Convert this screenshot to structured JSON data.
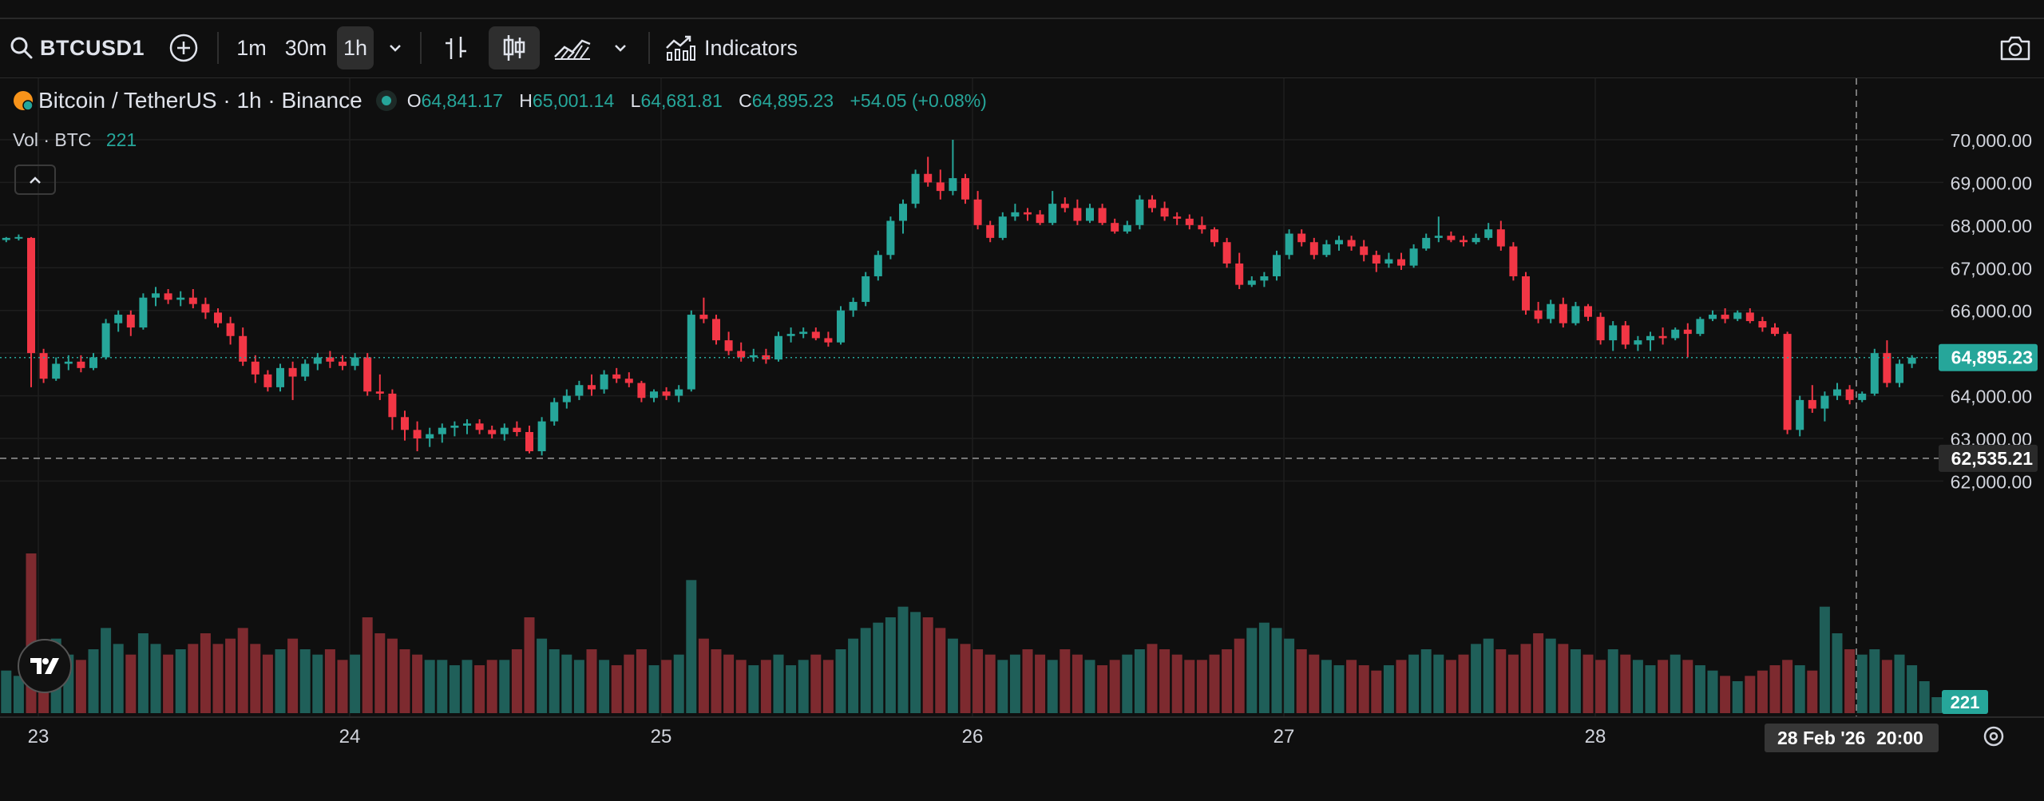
{
  "toolbar": {
    "symbol": "BTCUSD1",
    "intervals": [
      "1m",
      "30m",
      "1h"
    ],
    "active_interval": "1h",
    "indicators_label": "Indicators",
    "icons": [
      "search-icon",
      "add-symbol-icon",
      "chevron-down-icon",
      "bar-chart-icon",
      "candlestick-icon",
      "area-chart-icon",
      "indicators-icon",
      "camera-icon"
    ]
  },
  "legend": {
    "title": "Bitcoin / TetherUS · 1h · Binance",
    "open_key": "O",
    "open": "64,841.17",
    "high_key": "H",
    "high": "65,001.14",
    "low_key": "L",
    "low": "64,681.81",
    "close_key": "C",
    "close": "64,895.23",
    "change": "+54.05 (+0.08%)"
  },
  "volume_legend": {
    "label": "Vol · BTC",
    "value": "221"
  },
  "price_axis": {
    "current_price": "64,895.23",
    "crosshair_price": "62,535.21",
    "volume_badge": "221"
  },
  "time_axis": {
    "crosshair_date": "28 Feb '26",
    "crosshair_time": "20:00"
  },
  "colors": {
    "up": "#26a69a",
    "down": "#f23645",
    "background": "#0f0f0f",
    "grid": "#1e1e1e"
  },
  "chart_data": {
    "type": "candlestick",
    "title": "Bitcoin / TetherUS · 1h · Binance",
    "interval": "1h",
    "y_ticks": [
      70000,
      69000,
      68000,
      67000,
      66000,
      65000,
      64000,
      63000,
      62000
    ],
    "y_tick_labels": [
      "70,000.00",
      "69,000.00",
      "68,000.00",
      "67,000.00",
      "66,000.00",
      "65,000.00",
      "64,000.00",
      "63,000.00",
      "62,000.00"
    ],
    "x_ticks": [
      "23",
      "24",
      "25",
      "26",
      "27",
      "28"
    ],
    "last_close": 64895.23,
    "crosshair_value": 62535.21,
    "candles": [
      [
        67650,
        67720,
        67600,
        67700
      ],
      [
        67700,
        67780,
        67640,
        67720
      ],
      [
        67700,
        67720,
        64200,
        65000
      ],
      [
        65000,
        65100,
        64300,
        64400
      ],
      [
        64400,
        64900,
        64350,
        64750
      ],
      [
        64750,
        64950,
        64600,
        64800
      ],
      [
        64800,
        64950,
        64550,
        64650
      ],
      [
        64650,
        65000,
        64600,
        64900
      ],
      [
        64900,
        65800,
        64850,
        65700
      ],
      [
        65700,
        66000,
        65500,
        65900
      ],
      [
        65900,
        66000,
        65400,
        65600
      ],
      [
        65600,
        66400,
        65550,
        66300
      ],
      [
        66300,
        66550,
        66100,
        66400
      ],
      [
        66400,
        66500,
        66150,
        66250
      ],
      [
        66250,
        66450,
        66100,
        66300
      ],
      [
        66300,
        66500,
        66050,
        66150
      ],
      [
        66150,
        66300,
        65800,
        65950
      ],
      [
        65950,
        66050,
        65600,
        65700
      ],
      [
        65700,
        65850,
        65200,
        65400
      ],
      [
        65400,
        65600,
        64700,
        64800
      ],
      [
        64800,
        64950,
        64300,
        64500
      ],
      [
        64500,
        64600,
        64100,
        64200
      ],
      [
        64200,
        64750,
        64100,
        64650
      ],
      [
        64650,
        64800,
        63900,
        64450
      ],
      [
        64450,
        64850,
        64350,
        64750
      ],
      [
        64750,
        65000,
        64600,
        64900
      ],
      [
        64900,
        65050,
        64650,
        64800
      ],
      [
        64800,
        64950,
        64600,
        64700
      ],
      [
        64700,
        65000,
        64600,
        64900
      ],
      [
        64900,
        65000,
        64000,
        64100
      ],
      [
        64100,
        64500,
        63900,
        64050
      ],
      [
        64050,
        64150,
        63200,
        63500
      ],
      [
        63500,
        63650,
        62950,
        63200
      ],
      [
        63200,
        63400,
        62700,
        63000
      ],
      [
        63000,
        63250,
        62800,
        63100
      ],
      [
        63100,
        63350,
        62900,
        63250
      ],
      [
        63250,
        63400,
        63050,
        63300
      ],
      [
        63300,
        63450,
        63100,
        63350
      ],
      [
        63350,
        63450,
        63100,
        63200
      ],
      [
        63200,
        63300,
        63000,
        63100
      ],
      [
        63100,
        63350,
        62950,
        63250
      ],
      [
        63250,
        63400,
        63050,
        63150
      ],
      [
        63150,
        63300,
        62650,
        62700
      ],
      [
        62700,
        63500,
        62600,
        63400
      ],
      [
        63400,
        63950,
        63300,
        63850
      ],
      [
        63850,
        64150,
        63700,
        64000
      ],
      [
        64000,
        64350,
        63900,
        64250
      ],
      [
        64250,
        64500,
        64000,
        64150
      ],
      [
        64150,
        64600,
        64050,
        64500
      ],
      [
        64500,
        64650,
        64300,
        64400
      ],
      [
        64400,
        64550,
        64200,
        64300
      ],
      [
        64300,
        64350,
        63850,
        63950
      ],
      [
        63950,
        64150,
        63850,
        64100
      ],
      [
        64100,
        64200,
        63900,
        64000
      ],
      [
        64000,
        64250,
        63850,
        64150
      ],
      [
        64150,
        66000,
        64100,
        65900
      ],
      [
        65900,
        66300,
        65700,
        65800
      ],
      [
        65800,
        65900,
        65200,
        65300
      ],
      [
        65300,
        65500,
        64950,
        65050
      ],
      [
        65050,
        65250,
        64800,
        64900
      ],
      [
        64900,
        65100,
        64800,
        64950
      ],
      [
        64950,
        65100,
        64750,
        64850
      ],
      [
        64850,
        65500,
        64800,
        65400
      ],
      [
        65400,
        65600,
        65250,
        65450
      ],
      [
        65450,
        65600,
        65350,
        65500
      ],
      [
        65500,
        65600,
        65300,
        65350
      ],
      [
        65350,
        65500,
        65150,
        65250
      ],
      [
        65250,
        66100,
        65200,
        66000
      ],
      [
        66000,
        66300,
        65850,
        66200
      ],
      [
        66200,
        66900,
        66100,
        66800
      ],
      [
        66800,
        67400,
        66700,
        67300
      ],
      [
        67300,
        68200,
        67200,
        68100
      ],
      [
        68100,
        68600,
        67800,
        68500
      ],
      [
        68500,
        69300,
        68400,
        69200
      ],
      [
        69200,
        69600,
        68900,
        69000
      ],
      [
        69000,
        69300,
        68600,
        68800
      ],
      [
        68800,
        70000,
        68700,
        69100
      ],
      [
        69100,
        69200,
        68500,
        68600
      ],
      [
        68600,
        68800,
        67900,
        68000
      ],
      [
        68000,
        68100,
        67600,
        67700
      ],
      [
        67700,
        68300,
        67650,
        68200
      ],
      [
        68200,
        68500,
        68100,
        68300
      ],
      [
        68300,
        68400,
        68100,
        68250
      ],
      [
        68250,
        68350,
        68000,
        68050
      ],
      [
        68050,
        68800,
        68000,
        68500
      ],
      [
        68500,
        68650,
        68300,
        68400
      ],
      [
        68400,
        68600,
        68000,
        68100
      ],
      [
        68100,
        68500,
        68050,
        68400
      ],
      [
        68400,
        68500,
        68000,
        68050
      ],
      [
        68050,
        68150,
        67800,
        67850
      ],
      [
        67850,
        68100,
        67800,
        68000
      ],
      [
        68000,
        68700,
        67900,
        68600
      ],
      [
        68600,
        68700,
        68300,
        68400
      ],
      [
        68400,
        68550,
        68100,
        68200
      ],
      [
        68200,
        68300,
        68000,
        68150
      ],
      [
        68150,
        68250,
        67900,
        68000
      ],
      [
        68000,
        68200,
        67800,
        67900
      ],
      [
        67900,
        67950,
        67500,
        67600
      ],
      [
        67600,
        67700,
        67000,
        67100
      ],
      [
        67100,
        67350,
        66500,
        66600
      ],
      [
        66600,
        66800,
        66550,
        66700
      ],
      [
        66700,
        66900,
        66550,
        66800
      ],
      [
        66800,
        67400,
        66700,
        67300
      ],
      [
        67300,
        67900,
        67200,
        67800
      ],
      [
        67800,
        67900,
        67500,
        67600
      ],
      [
        67600,
        67700,
        67200,
        67300
      ],
      [
        67300,
        67650,
        67250,
        67550
      ],
      [
        67550,
        67750,
        67400,
        67650
      ],
      [
        67650,
        67750,
        67400,
        67500
      ],
      [
        67500,
        67650,
        67150,
        67300
      ],
      [
        67300,
        67400,
        66900,
        67100
      ],
      [
        67100,
        67350,
        67000,
        67200
      ],
      [
        67200,
        67350,
        66950,
        67050
      ],
      [
        67050,
        67550,
        67000,
        67450
      ],
      [
        67450,
        67800,
        67400,
        67700
      ],
      [
        67700,
        68200,
        67600,
        67750
      ],
      [
        67750,
        67850,
        67600,
        67650
      ],
      [
        67650,
        67750,
        67500,
        67600
      ],
      [
        67600,
        67800,
        67550,
        67700
      ],
      [
        67700,
        68050,
        67650,
        67900
      ],
      [
        67900,
        68100,
        67400,
        67500
      ],
      [
        67500,
        67600,
        66700,
        66800
      ],
      [
        66800,
        66900,
        65900,
        66000
      ],
      [
        66000,
        66200,
        65700,
        65800
      ],
      [
        65800,
        66250,
        65700,
        66150
      ],
      [
        66150,
        66300,
        65600,
        65700
      ],
      [
        65700,
        66200,
        65650,
        66100
      ],
      [
        66100,
        66150,
        65750,
        65850
      ],
      [
        65850,
        65950,
        65200,
        65300
      ],
      [
        65300,
        65750,
        65050,
        65650
      ],
      [
        65650,
        65750,
        65100,
        65200
      ],
      [
        65200,
        65400,
        65050,
        65300
      ],
      [
        65300,
        65500,
        65050,
        65400
      ],
      [
        65400,
        65600,
        65200,
        65350
      ],
      [
        65350,
        65600,
        65300,
        65550
      ],
      [
        65550,
        65700,
        64900,
        65450
      ],
      [
        65450,
        65850,
        65400,
        65800
      ],
      [
        65800,
        66000,
        65750,
        65900
      ],
      [
        65900,
        66050,
        65700,
        65800
      ],
      [
        65800,
        66000,
        65750,
        65950
      ],
      [
        65950,
        66050,
        65700,
        65750
      ],
      [
        65750,
        65850,
        65500,
        65600
      ],
      [
        65600,
        65700,
        65400,
        65450
      ],
      [
        65450,
        65500,
        63100,
        63200
      ],
      [
        63200,
        64000,
        63050,
        63900
      ],
      [
        63900,
        64250,
        63600,
        63700
      ],
      [
        63700,
        64100,
        63400,
        64000
      ],
      [
        64000,
        64300,
        63900,
        64150
      ],
      [
        64150,
        64250,
        63800,
        63900
      ],
      [
        63900,
        64100,
        63850,
        64050
      ],
      [
        64050,
        65100,
        64000,
        65000
      ],
      [
        65000,
        65300,
        64200,
        64300
      ],
      [
        64300,
        64850,
        64200,
        64750
      ],
      [
        64750,
        64950,
        64650,
        64895
      ]
    ],
    "volumes": [
      8,
      7,
      30,
      12,
      14,
      11,
      10,
      12,
      16,
      13,
      11,
      15,
      13,
      11,
      12,
      13,
      15,
      13,
      14,
      16,
      13,
      11,
      12,
      14,
      12,
      11,
      12,
      10,
      11,
      18,
      15,
      14,
      12,
      11,
      10,
      10,
      9,
      10,
      9,
      10,
      10,
      12,
      18,
      14,
      12,
      11,
      10,
      12,
      10,
      9,
      11,
      12,
      9,
      10,
      11,
      25,
      14,
      12,
      11,
      10,
      9,
      10,
      11,
      9,
      10,
      11,
      10,
      12,
      14,
      16,
      17,
      18,
      20,
      19,
      18,
      16,
      14,
      13,
      12,
      11,
      10,
      11,
      12,
      11,
      10,
      12,
      11,
      10,
      9,
      10,
      11,
      12,
      13,
      12,
      11,
      10,
      10,
      11,
      12,
      14,
      16,
      17,
      16,
      14,
      12,
      11,
      10,
      9,
      10,
      9,
      8,
      9,
      10,
      11,
      12,
      11,
      10,
      11,
      13,
      14,
      12,
      11,
      13,
      15,
      14,
      13,
      12,
      11,
      10,
      12,
      11,
      10,
      9,
      10,
      11,
      10,
      9,
      8,
      7,
      6,
      7,
      8,
      9,
      10,
      9,
      8,
      20,
      15,
      12,
      11,
      12,
      10,
      11,
      9,
      6,
      3
    ]
  }
}
